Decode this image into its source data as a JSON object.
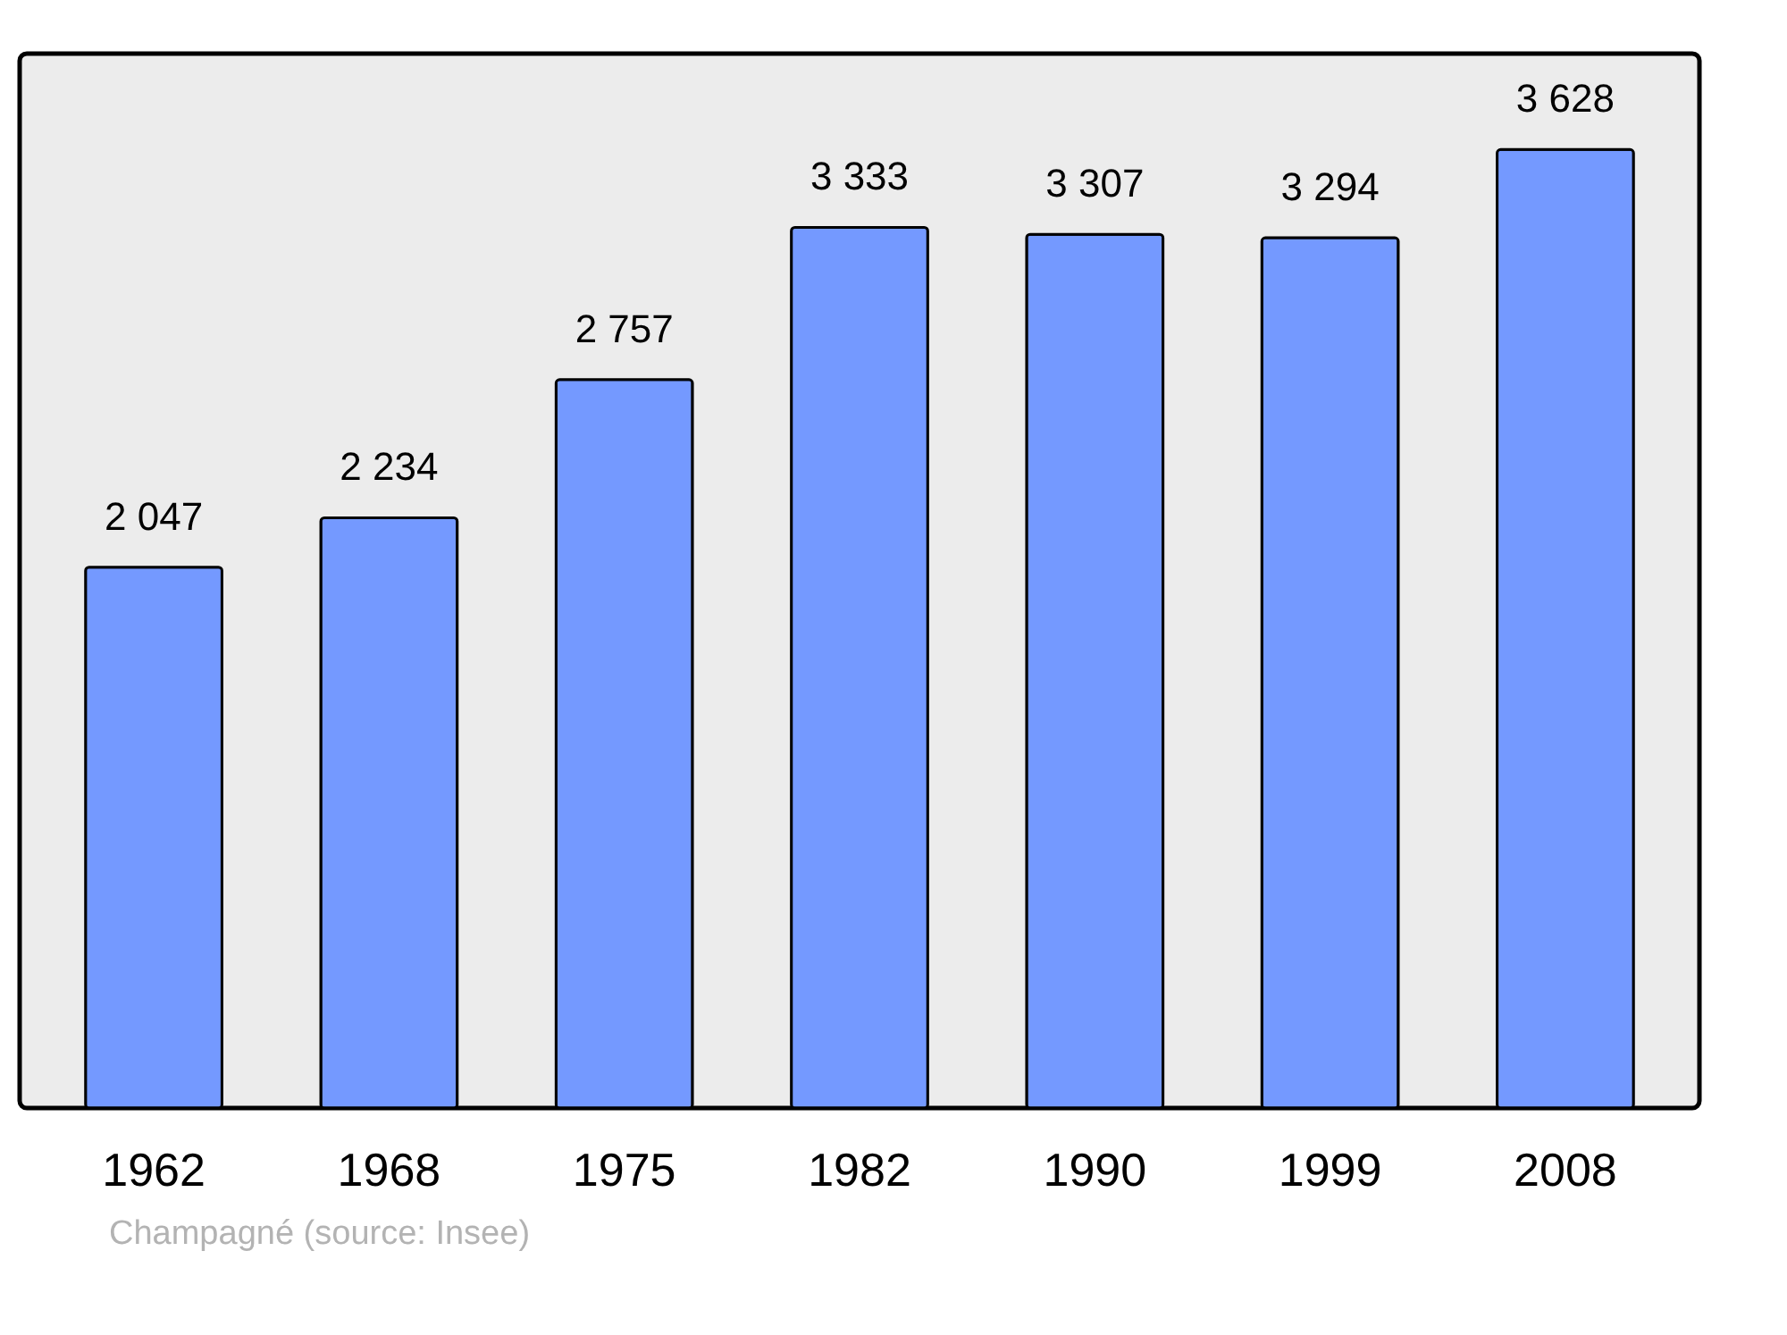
{
  "chart_data": {
    "type": "bar",
    "categories": [
      "1962",
      "1968",
      "1975",
      "1982",
      "1990",
      "1999",
      "2008"
    ],
    "series": [
      {
        "color": "#7499ff",
        "values": [
          2047,
          2234,
          2757,
          3333,
          3307,
          3294,
          3628
        ]
      }
    ],
    "data_labels": true,
    "annotations": [
      "Champagné    (source: Insee)"
    ]
  }
}
